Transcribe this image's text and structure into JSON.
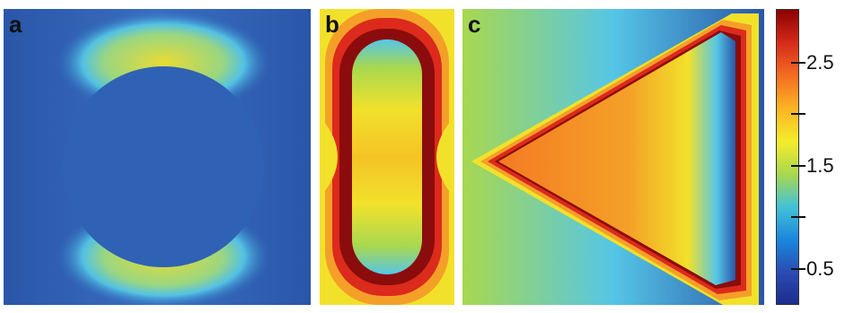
{
  "panels": {
    "a": {
      "label": "a"
    },
    "b": {
      "label": "b"
    },
    "c": {
      "label": "c"
    }
  },
  "colorbar": {
    "labels": [
      "2.5",
      "1.5",
      "0.5"
    ],
    "colors": [
      "#8b0000",
      "#d62a1a",
      "#f46d22",
      "#fbb424",
      "#f4ec2b",
      "#a8d84f",
      "#43c1d7",
      "#1a86dd",
      "#2a4bb2",
      "#1b2b8a"
    ]
  },
  "palette": {
    "deep_blue": "#2f5cb0",
    "cyan": "#55c6e6",
    "yellow": "#f2e12b",
    "orange": "#f4a028",
    "red": "#dc2a1c",
    "dark_red": "#8b0c0c"
  }
}
